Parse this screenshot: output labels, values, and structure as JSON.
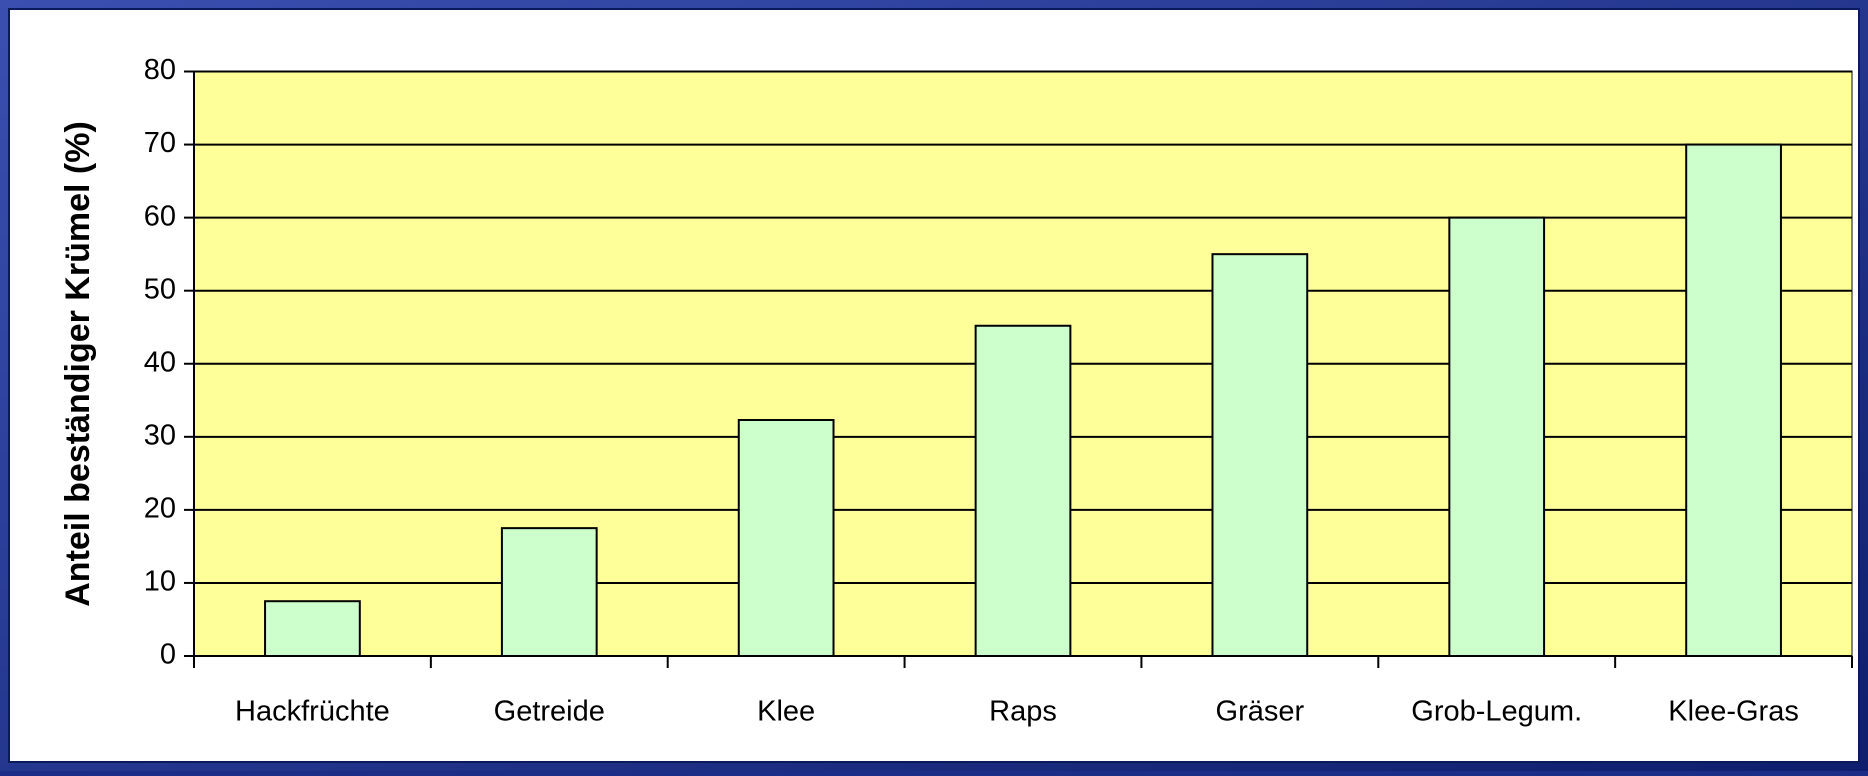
{
  "chart_data": {
    "type": "bar",
    "ylabel": "Anteil beständiger Krümel (%)",
    "categories": [
      "Hackfrüchte",
      "Getreide",
      "Klee",
      "Raps",
      "Gräser",
      "Grob-Legum.",
      "Klee-Gras"
    ],
    "values": [
      7.5,
      17.5,
      32.3,
      45.2,
      55,
      60,
      70
    ],
    "color": "#ccffcc",
    "plot_background": "#ffff99",
    "ylim": [
      0,
      80
    ],
    "yticks": [
      0,
      10,
      20,
      30,
      40,
      50,
      60,
      70,
      80
    ],
    "grid": true
  }
}
